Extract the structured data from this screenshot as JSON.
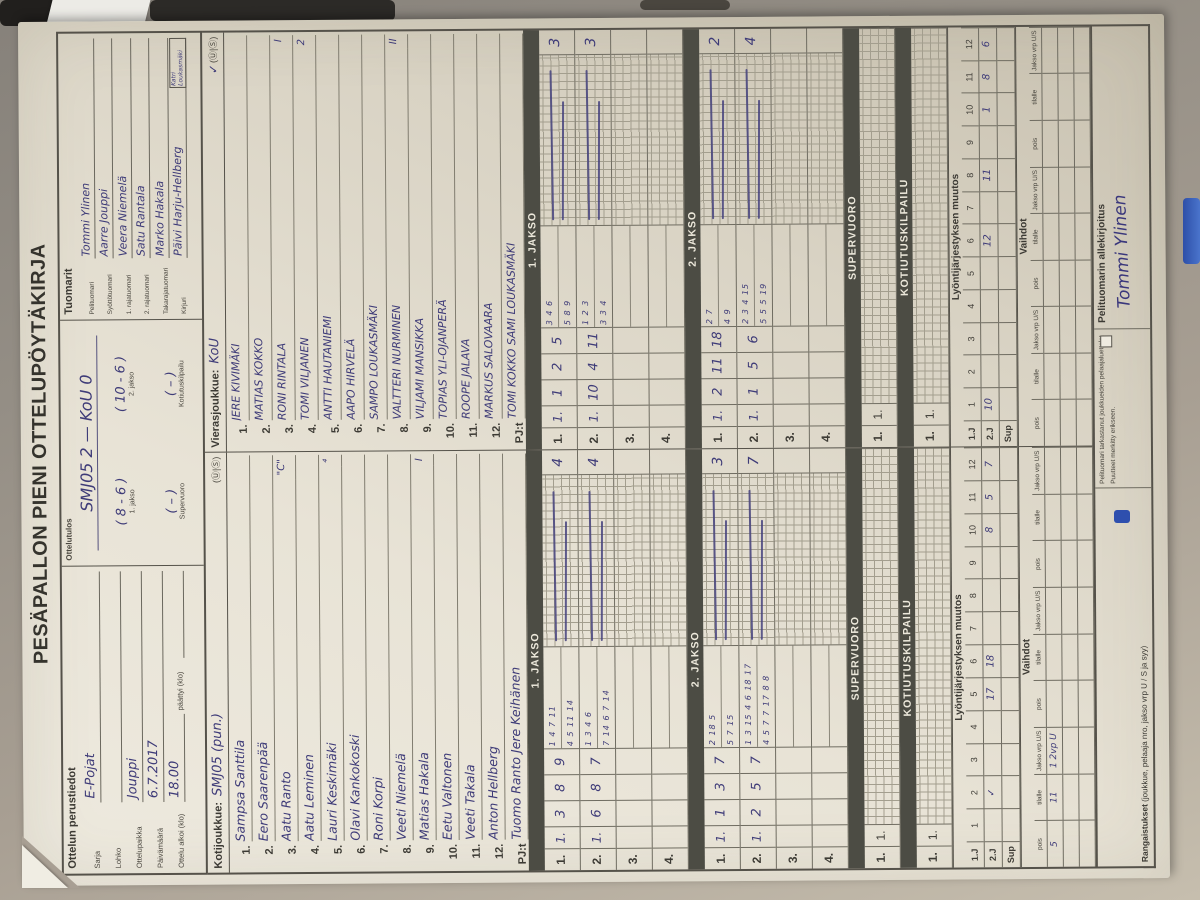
{
  "title": "PESÄPALLON PIENI OTTELUPÖYTÄKIRJA",
  "perustiedot": {
    "heading": "Ottelun perustiedot",
    "rows": [
      {
        "label": "Sarja",
        "value": "E-Pojat"
      },
      {
        "label": "Lohko",
        "value": ""
      },
      {
        "label": "Ottelupaikka",
        "value": "Jouppi"
      },
      {
        "label": "Päivämäärä",
        "value": "6.7.2017"
      }
    ],
    "alkoi_label": "Ottelu alkoi (klo)",
    "alkoi": "18.00",
    "paattyi_label": "päättyi (klo)",
    "paattyi": ""
  },
  "ottelutulos": {
    "heading": "Ottelutulos",
    "result": "SMJ05 2 — KoU 0",
    "pairs": [
      {
        "value": "( 8 - 6 )",
        "label": "1. jakso"
      },
      {
        "value": "( 10 - 6 )",
        "label": "2. jakso"
      },
      {
        "value": "( – )",
        "label": "Supervuoro"
      },
      {
        "value": "( – )",
        "label": "Kotiutuskilpailu"
      }
    ]
  },
  "tuomarit": {
    "heading": "Tuomarit",
    "rows": [
      {
        "label": "Pelituomari",
        "name": "Tommi Ylinen",
        "extra": ""
      },
      {
        "label": "Syöttötuomari",
        "name": "Aarre Jouppi",
        "extra": ""
      },
      {
        "label": "1. rajatuomari",
        "name": "Veera Niemelä",
        "extra": ""
      },
      {
        "label": "2. rajatuomari",
        "name": "Satu Rantala",
        "extra": ""
      },
      {
        "label": "Takarajatuomari",
        "name": "Marko Hakala",
        "extra": ""
      },
      {
        "label": "Kirjuri",
        "name": "Päivi Harju-Hellberg",
        "extra": "Katri Loukasmäki"
      }
    ]
  },
  "teams": [
    {
      "header_label": "Kotijoukkue:",
      "team": "SMJ05 (pun.)",
      "us": "(Ⓤ|Ⓢ)",
      "us_check": "",
      "lineup": [
        {
          "no": "1.",
          "name": "Sampsa Santtila",
          "mark": ""
        },
        {
          "no": "2.",
          "name": "Eero Saarenpää",
          "mark": ""
        },
        {
          "no": "3.",
          "name": "Aatu Ranto",
          "mark": "\"C\""
        },
        {
          "no": "4.",
          "name": "Aatu Leminen",
          "mark": ""
        },
        {
          "no": "5.",
          "name": "Lauri Keskimäki",
          "mark": "⁴"
        },
        {
          "no": "6.",
          "name": "Olavi Kankokoski",
          "mark": ""
        },
        {
          "no": "7.",
          "name": "Roni Korpi",
          "mark": ""
        },
        {
          "no": "8.",
          "name": "Veeti Niemelä",
          "mark": ""
        },
        {
          "no": "9.",
          "name": "Matias Hakala",
          "mark": "I"
        },
        {
          "no": "10.",
          "name": "Eetu Valtonen",
          "mark": ""
        },
        {
          "no": "11.",
          "name": "Veeti Takala",
          "mark": ""
        },
        {
          "no": "12.",
          "name": "Anton Hellberg",
          "mark": ""
        },
        {
          "no": "PJ:t",
          "name": "Tuomo Ranto    Jere Keihänen",
          "mark": ""
        }
      ],
      "jakso1": {
        "band": "1. JAKSO",
        "rows": [
          {
            "no": "1.",
            "sub": "1.",
            "big": [
              "3",
              "8",
              "9"
            ],
            "small_top": "1 4 7 11",
            "small_bottom": "4 5 11 14",
            "strokes": true,
            "total": "4"
          },
          {
            "no": "2.",
            "sub": "1.",
            "big": [
              "6",
              "8",
              "7"
            ],
            "small_top": "1 3 4 6",
            "small_bottom": "7 14 6 7 14",
            "strokes": true,
            "total": "4"
          },
          {
            "no": "3.",
            "sub": "",
            "big": [
              "",
              "",
              ""
            ],
            "small_top": "",
            "small_bottom": "",
            "strokes": false,
            "total": ""
          },
          {
            "no": "4.",
            "sub": "",
            "big": [
              "",
              "",
              ""
            ],
            "small_top": "",
            "small_bottom": "",
            "strokes": false,
            "total": ""
          }
        ]
      },
      "jakso2": {
        "band": "2. JAKSO",
        "rows": [
          {
            "no": "1.",
            "sub": "1.",
            "big": [
              "1",
              "3",
              "7"
            ],
            "small_top": "2 18 5",
            "small_bottom": "5 7 15",
            "strokes": true,
            "total": "3"
          },
          {
            "no": "2.",
            "sub": "1.",
            "big": [
              "2",
              "5",
              "7"
            ],
            "small_top": "1 3 15 4 6 18 17",
            "small_bottom": "4 5 7 7 17 8 8",
            "strokes": true,
            "total": "7"
          },
          {
            "no": "3.",
            "sub": "",
            "big": [
              "",
              "",
              ""
            ],
            "small_top": "",
            "small_bottom": "",
            "strokes": false,
            "total": ""
          },
          {
            "no": "4.",
            "sub": "",
            "big": [
              "",
              "",
              ""
            ],
            "small_top": "",
            "small_bottom": "",
            "strokes": false,
            "total": ""
          }
        ]
      },
      "supervuoro": {
        "band": "SUPERVUORO",
        "row_no": "1.",
        "row_sub": "1."
      },
      "kotiutus": {
        "band": "KOTIUTUSKILPAILU",
        "row_no": "1.",
        "row_sub": "1."
      },
      "lyonti": {
        "heading": "Lyöntijärjestyksen muutos",
        "r1_label": "1.J",
        "r2_label": "2.J",
        "r3_label": "Sup",
        "cols": [
          "1",
          "2",
          "3",
          "4",
          "5",
          "6",
          "7",
          "8",
          "9",
          "10",
          "11",
          "12"
        ],
        "r2": [
          "",
          "✓",
          "",
          "",
          "17",
          "18",
          "",
          "",
          "",
          "8",
          "5",
          "7"
        ],
        "r3": [
          "",
          "",
          "",
          "",
          "",
          "",
          "",
          "",
          "",
          "",
          "",
          ""
        ]
      },
      "vaihdot": {
        "heading": "Vaihdot",
        "col_labels": [
          "pois",
          "tilalle",
          "Jakso vrp U/S"
        ],
        "rows": [
          [
            [
              "5",
              "11",
              "1 2vp U"
            ],
            [
              "",
              "",
              ""
            ],
            [
              "",
              "",
              ""
            ]
          ],
          [
            [
              "",
              "",
              ""
            ],
            [
              "",
              "",
              ""
            ],
            [
              "",
              "",
              ""
            ]
          ],
          [
            [
              "",
              "",
              ""
            ],
            [
              "",
              "",
              ""
            ],
            [
              "",
              "",
              ""
            ]
          ]
        ]
      }
    },
    {
      "header_label": "Vierasjoukkue:",
      "team": "KoU",
      "us": "(Ⓤ|Ⓢ)",
      "us_check": "✓",
      "lineup": [
        {
          "no": "1.",
          "name": "JERE KIVIMÄKI",
          "mark": ""
        },
        {
          "no": "2.",
          "name": "MATIAS KOKKO",
          "mark": ""
        },
        {
          "no": "3.",
          "name": "RONI RINTALA",
          "mark": "I"
        },
        {
          "no": "4.",
          "name": "TOMI VILJANEN",
          "mark": "2"
        },
        {
          "no": "5.",
          "name": "ANTTI HAUTANIEMI",
          "mark": ""
        },
        {
          "no": "6.",
          "name": "AAPO HIRVELÄ",
          "mark": ""
        },
        {
          "no": "7.",
          "name": "SAMPO LOUKASMÄKI",
          "mark": ""
        },
        {
          "no": "8.",
          "name": "VALTTERI NURMINEN",
          "mark": "II"
        },
        {
          "no": "9.",
          "name": "VILJAMI MANSIKKA",
          "mark": ""
        },
        {
          "no": "10.",
          "name": "TOPIAS YLI-OJANPERÄ",
          "mark": ""
        },
        {
          "no": "11.",
          "name": "ROOPE JALAVA",
          "mark": ""
        },
        {
          "no": "12.",
          "name": "MARKUS SALOVAARA",
          "mark": ""
        },
        {
          "no": "PJ:t",
          "name": "TOMI KOKKO   SAMI LOUKASMÄKI",
          "mark": ""
        }
      ],
      "jakso1": {
        "band": "1. JAKSO",
        "rows": [
          {
            "no": "1.",
            "sub": "1.",
            "big": [
              "1",
              "2",
              "5"
            ],
            "small_top": "3 4 6",
            "small_bottom": "5 8 9",
            "strokes": true,
            "total": "3"
          },
          {
            "no": "2.",
            "sub": "1.",
            "big": [
              "10",
              "4",
              "11"
            ],
            "small_top": "1 2 3",
            "small_bottom": "3 3 4",
            "strokes": true,
            "total": "3"
          },
          {
            "no": "3.",
            "sub": "",
            "big": [
              "",
              "",
              ""
            ],
            "small_top": "",
            "small_bottom": "",
            "strokes": false,
            "total": ""
          },
          {
            "no": "4.",
            "sub": "",
            "big": [
              "",
              "",
              ""
            ],
            "small_top": "",
            "small_bottom": "",
            "strokes": false,
            "total": ""
          }
        ]
      },
      "jakso2": {
        "band": "2. JAKSO",
        "rows": [
          {
            "no": "1.",
            "sub": "1.",
            "big": [
              "2",
              "11",
              "18"
            ],
            "small_top": "2 7",
            "small_bottom": "4 9",
            "strokes": true,
            "total": "2"
          },
          {
            "no": "2.",
            "sub": "1.",
            "big": [
              "1",
              "5",
              "6"
            ],
            "small_top": "2 3 4 15",
            "small_bottom": "5 5 5 19",
            "strokes": true,
            "total": "4"
          },
          {
            "no": "3.",
            "sub": "",
            "big": [
              "",
              "",
              ""
            ],
            "small_top": "",
            "small_bottom": "",
            "strokes": false,
            "total": ""
          },
          {
            "no": "4.",
            "sub": "",
            "big": [
              "",
              "",
              ""
            ],
            "small_top": "",
            "small_bottom": "",
            "strokes": false,
            "total": ""
          }
        ]
      },
      "supervuoro": {
        "band": "SUPERVUORO",
        "row_no": "1.",
        "row_sub": "1."
      },
      "kotiutus": {
        "band": "KOTIUTUSKILPAILU",
        "row_no": "1.",
        "row_sub": "1."
      },
      "lyonti": {
        "heading": "Lyöntijärjestyksen muutos",
        "r1_label": "1.J",
        "r2_label": "2.J",
        "r3_label": "Sup",
        "cols": [
          "1",
          "2",
          "3",
          "4",
          "5",
          "6",
          "7",
          "8",
          "9",
          "10",
          "11",
          "12"
        ],
        "r2": [
          "10",
          "",
          "",
          "",
          "",
          "12",
          "",
          "11",
          "",
          "1",
          "8",
          "6"
        ],
        "r3": [
          "",
          "",
          "",
          "",
          "",
          "",
          "",
          "",
          "",
          "",
          "",
          ""
        ]
      },
      "vaihdot": {
        "heading": "Vaihdot",
        "col_labels": [
          "pois",
          "tilalle",
          "Jakso vrp U/S"
        ],
        "rows": [
          [
            [
              "",
              "",
              ""
            ],
            [
              "",
              "",
              ""
            ],
            [
              "",
              "",
              ""
            ]
          ],
          [
            [
              "",
              "",
              ""
            ],
            [
              "",
              "",
              ""
            ],
            [
              "",
              "",
              ""
            ]
          ],
          [
            [
              "",
              "",
              ""
            ],
            [
              "",
              "",
              ""
            ],
            [
              "",
              "",
              ""
            ]
          ]
        ]
      }
    }
  ],
  "footer": {
    "rangaistukset_bold": "Rangaistukset",
    "rangaistukset_rest": " (joukkue, pelaaja nro, jakso vrp U / S ja syy)",
    "tarkastanut": "Pelituomari tarkastanut joukkueiden pelaajaluettelot",
    "puutteet": "Puutteet merkitty erikseen.",
    "allekirjoitus_label": "Pelituomarin allekirjoitus",
    "signature": "Tommi Ylinen"
  },
  "colors": {
    "ink": "#3e3b78",
    "band": "#4c4c44",
    "paper": "#e8e3d6"
  }
}
